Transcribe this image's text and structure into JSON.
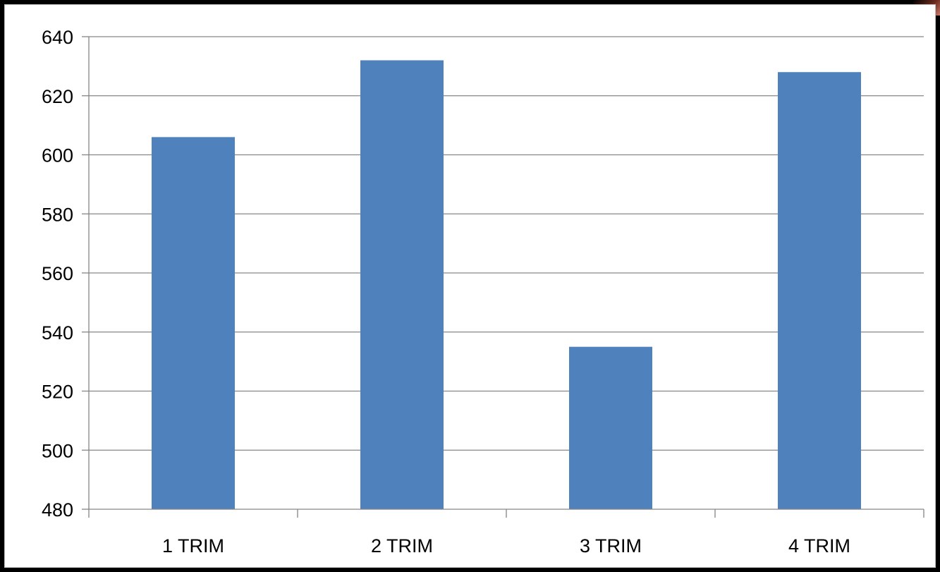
{
  "chart_data": {
    "type": "bar",
    "categories": [
      "1 TRIM",
      "2 TRIM",
      "3 TRIM",
      "4 TRIM"
    ],
    "values": [
      606,
      632,
      535,
      628
    ],
    "yticks": [
      "480",
      "500",
      "520",
      "540",
      "560",
      "580",
      "600",
      "620",
      "640"
    ],
    "ylim": [
      480,
      640
    ],
    "grid": true,
    "legend": "none",
    "bar_color": "#4f81bd",
    "grid_color": "#868686"
  }
}
